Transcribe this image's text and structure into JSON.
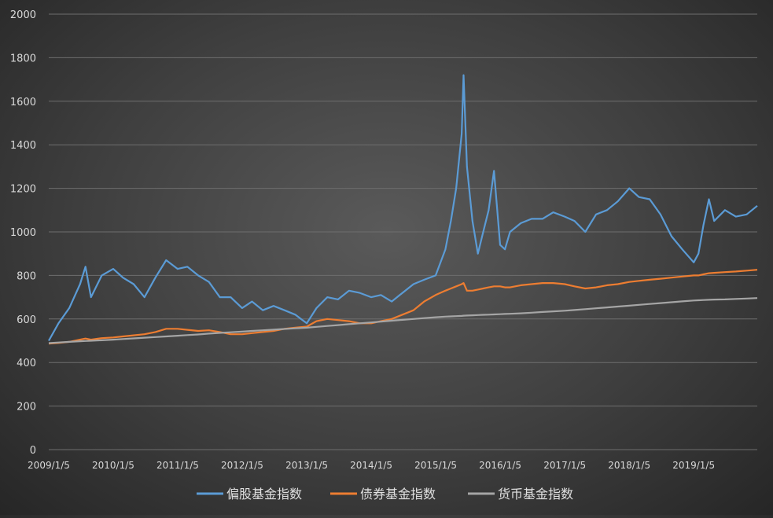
{
  "chart_data": {
    "type": "line",
    "title": "",
    "xlabel": "",
    "ylabel": "",
    "ylim": [
      0,
      2000
    ],
    "yticks": [
      0,
      200,
      400,
      600,
      800,
      1000,
      1200,
      1400,
      1600,
      1800,
      2000
    ],
    "xlim": [
      "2009/1/5",
      "2019/12/31"
    ],
    "xticks": [
      "2009/1/5",
      "2010/1/5",
      "2011/1/5",
      "2012/1/5",
      "2013/1/5",
      "2014/1/5",
      "2015/1/5",
      "2016/1/5",
      "2017/1/5",
      "2018/1/5",
      "2019/1/5"
    ],
    "grid": true,
    "legend_position": "bottom",
    "x": [
      "2009/1/5",
      "2009/3/1",
      "2009/5/1",
      "2009/7/1",
      "2009/8/1",
      "2009/9/1",
      "2009/11/1",
      "2010/1/5",
      "2010/3/1",
      "2010/5/1",
      "2010/7/1",
      "2010/9/1",
      "2010/11/1",
      "2011/1/5",
      "2011/3/1",
      "2011/5/1",
      "2011/7/1",
      "2011/9/1",
      "2011/11/1",
      "2012/1/5",
      "2012/3/1",
      "2012/5/1",
      "2012/7/1",
      "2012/9/1",
      "2012/11/1",
      "2013/1/5",
      "2013/3/1",
      "2013/5/1",
      "2013/7/1",
      "2013/9/1",
      "2013/11/1",
      "2014/1/5",
      "2014/3/1",
      "2014/5/1",
      "2014/7/1",
      "2014/9/1",
      "2014/11/1",
      "2015/1/5",
      "2015/3/1",
      "2015/4/1",
      "2015/5/1",
      "2015/6/1",
      "2015/6/12",
      "2015/7/1",
      "2015/8/1",
      "2015/9/1",
      "2015/10/1",
      "2015/11/1",
      "2015/12/1",
      "2016/1/5",
      "2016/2/1",
      "2016/3/1",
      "2016/5/1",
      "2016/7/1",
      "2016/9/1",
      "2016/11/1",
      "2017/1/5",
      "2017/3/1",
      "2017/5/1",
      "2017/7/1",
      "2017/9/1",
      "2017/11/1",
      "2018/1/5",
      "2018/3/1",
      "2018/5/1",
      "2018/7/1",
      "2018/9/1",
      "2018/11/1",
      "2019/1/5",
      "2019/2/1",
      "2019/3/1",
      "2019/4/1",
      "2019/5/1",
      "2019/7/1",
      "2019/9/1",
      "2019/11/1",
      "2019/12/31"
    ],
    "series": [
      {
        "name": "偏股基金指数",
        "color": "#5B9BD5",
        "values": [
          500,
          580,
          650,
          760,
          840,
          700,
          800,
          830,
          790,
          760,
          700,
          790,
          870,
          830,
          840,
          800,
          770,
          700,
          700,
          650,
          680,
          640,
          660,
          640,
          620,
          580,
          650,
          700,
          690,
          730,
          720,
          700,
          710,
          680,
          720,
          760,
          780,
          800,
          920,
          1050,
          1200,
          1450,
          1720,
          1300,
          1050,
          900,
          1000,
          1100,
          1280,
          940,
          920,
          1000,
          1040,
          1060,
          1060,
          1090,
          1070,
          1050,
          1000,
          1080,
          1100,
          1140,
          1200,
          1160,
          1150,
          1080,
          980,
          920,
          860,
          900,
          1030,
          1150,
          1050,
          1100,
          1070,
          1080,
          1120
        ]
      },
      {
        "name": "债券基金指数",
        "color": "#ED7D31",
        "values": [
          487,
          490,
          495,
          505,
          510,
          505,
          512,
          515,
          520,
          525,
          530,
          540,
          555,
          555,
          550,
          545,
          548,
          540,
          530,
          530,
          535,
          540,
          545,
          555,
          560,
          565,
          590,
          600,
          595,
          590,
          580,
          580,
          590,
          600,
          620,
          640,
          680,
          710,
          730,
          740,
          750,
          760,
          765,
          730,
          730,
          735,
          740,
          745,
          750,
          750,
          745,
          745,
          755,
          760,
          765,
          765,
          760,
          750,
          740,
          745,
          755,
          760,
          770,
          775,
          780,
          785,
          790,
          795,
          800,
          800,
          805,
          810,
          812,
          815,
          818,
          822,
          826
        ]
      },
      {
        "name": "货币基金指数",
        "color": "#A5A5A5",
        "values": [
          489,
          492,
          495,
          498,
          499,
          500,
          502,
          505,
          508,
          511,
          514,
          517,
          520,
          523,
          526,
          529,
          533,
          536,
          539,
          542,
          545,
          548,
          551,
          554,
          557,
          560,
          564,
          568,
          572,
          576,
          580,
          584,
          588,
          592,
          596,
          600,
          604,
          608,
          611,
          612,
          613,
          614,
          615,
          616,
          617,
          618,
          619,
          620,
          621,
          622,
          623,
          624,
          626,
          629,
          632,
          635,
          638,
          641,
          645,
          649,
          653,
          657,
          661,
          665,
          669,
          673,
          677,
          681,
          685,
          686,
          687,
          688,
          689,
          690,
          692,
          694,
          696
        ]
      }
    ]
  }
}
